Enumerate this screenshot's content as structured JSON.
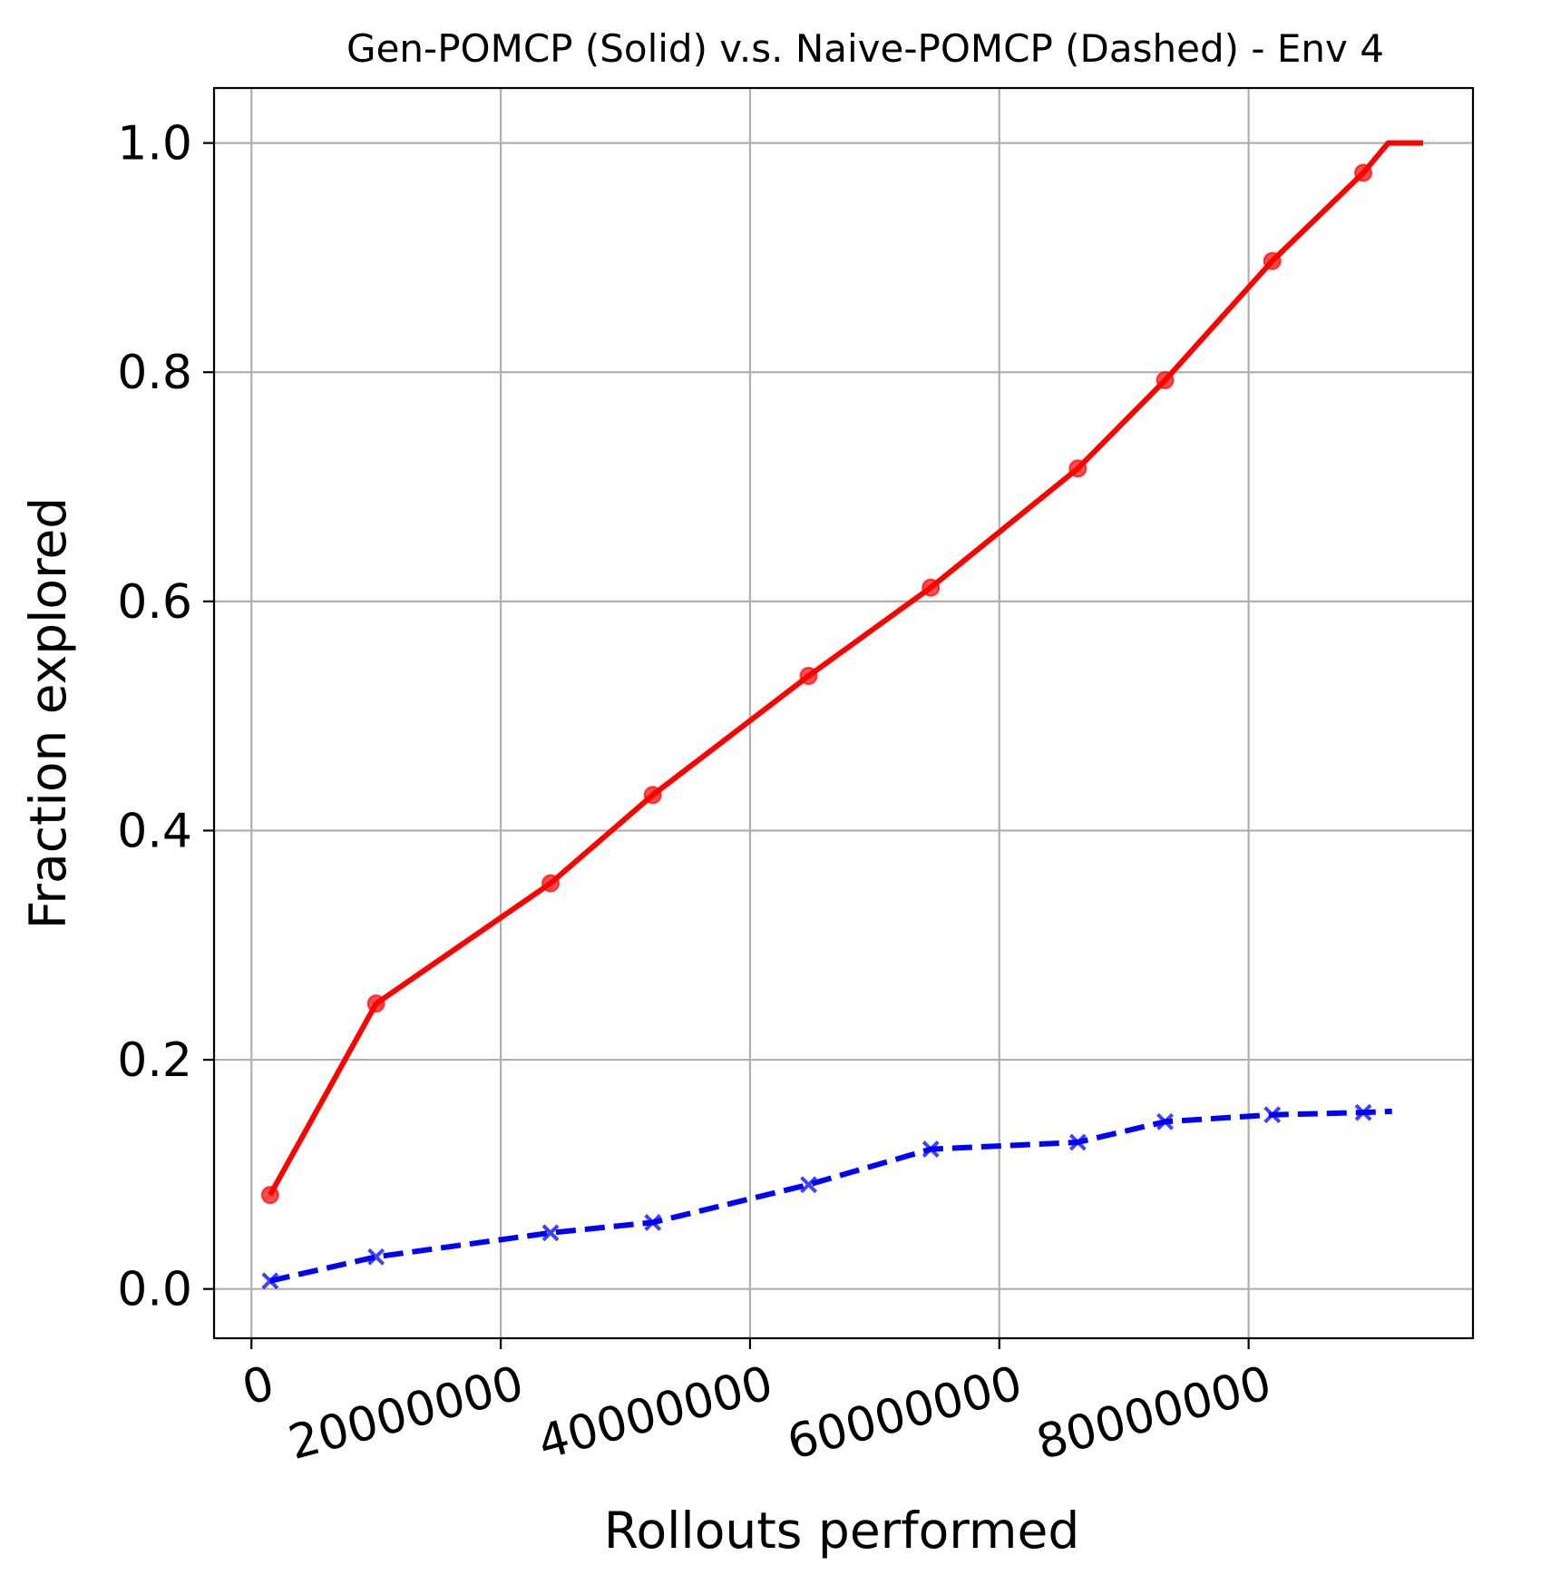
{
  "chart_data": {
    "type": "line",
    "title": "Gen-POMCP (Solid) v.s. Naive-POMCP (Dashed) - Env 4",
    "xlabel": "Rollouts performed",
    "ylabel": "Fraction explored",
    "xlim": [
      -3000000,
      98000000
    ],
    "ylim": [
      -0.043,
      1.048
    ],
    "xticks": [
      0,
      20000000,
      40000000,
      60000000,
      80000000
    ],
    "xtick_labels": [
      "0",
      "20000000",
      "40000000",
      "60000000",
      "80000000"
    ],
    "yticks": [
      0.0,
      0.2,
      0.4,
      0.6,
      0.8,
      1.0
    ],
    "ytick_labels": [
      "0.0",
      "0.2",
      "0.4",
      "0.6",
      "0.8",
      "1.0"
    ],
    "grid": true,
    "series": [
      {
        "name": "Gen-POMCP",
        "style": "solid",
        "marker": "circle",
        "color": "#ff0000",
        "x": [
          1500000,
          10000000,
          24000000,
          32200000,
          44700000,
          54500000,
          66300000,
          73300000,
          81900000,
          89200000,
          91200000,
          94000000
        ],
        "y": [
          0.082,
          0.249,
          0.354,
          0.431,
          0.535,
          0.612,
          0.716,
          0.793,
          0.897,
          0.974,
          1.0,
          1.0
        ],
        "marked": [
          true,
          true,
          true,
          true,
          true,
          true,
          true,
          true,
          true,
          true,
          false,
          false
        ]
      },
      {
        "name": "Naive-POMCP",
        "style": "dashed",
        "marker": "x",
        "color": "#0000ff",
        "x": [
          1500000,
          10000000,
          24000000,
          32200000,
          44700000,
          54500000,
          66300000,
          73300000,
          81900000,
          89200000,
          91500000
        ],
        "y": [
          0.007,
          0.028,
          0.049,
          0.058,
          0.091,
          0.122,
          0.128,
          0.146,
          0.152,
          0.154,
          0.155
        ],
        "marked": [
          true,
          true,
          true,
          true,
          true,
          true,
          true,
          true,
          true,
          true,
          false
        ]
      }
    ]
  }
}
